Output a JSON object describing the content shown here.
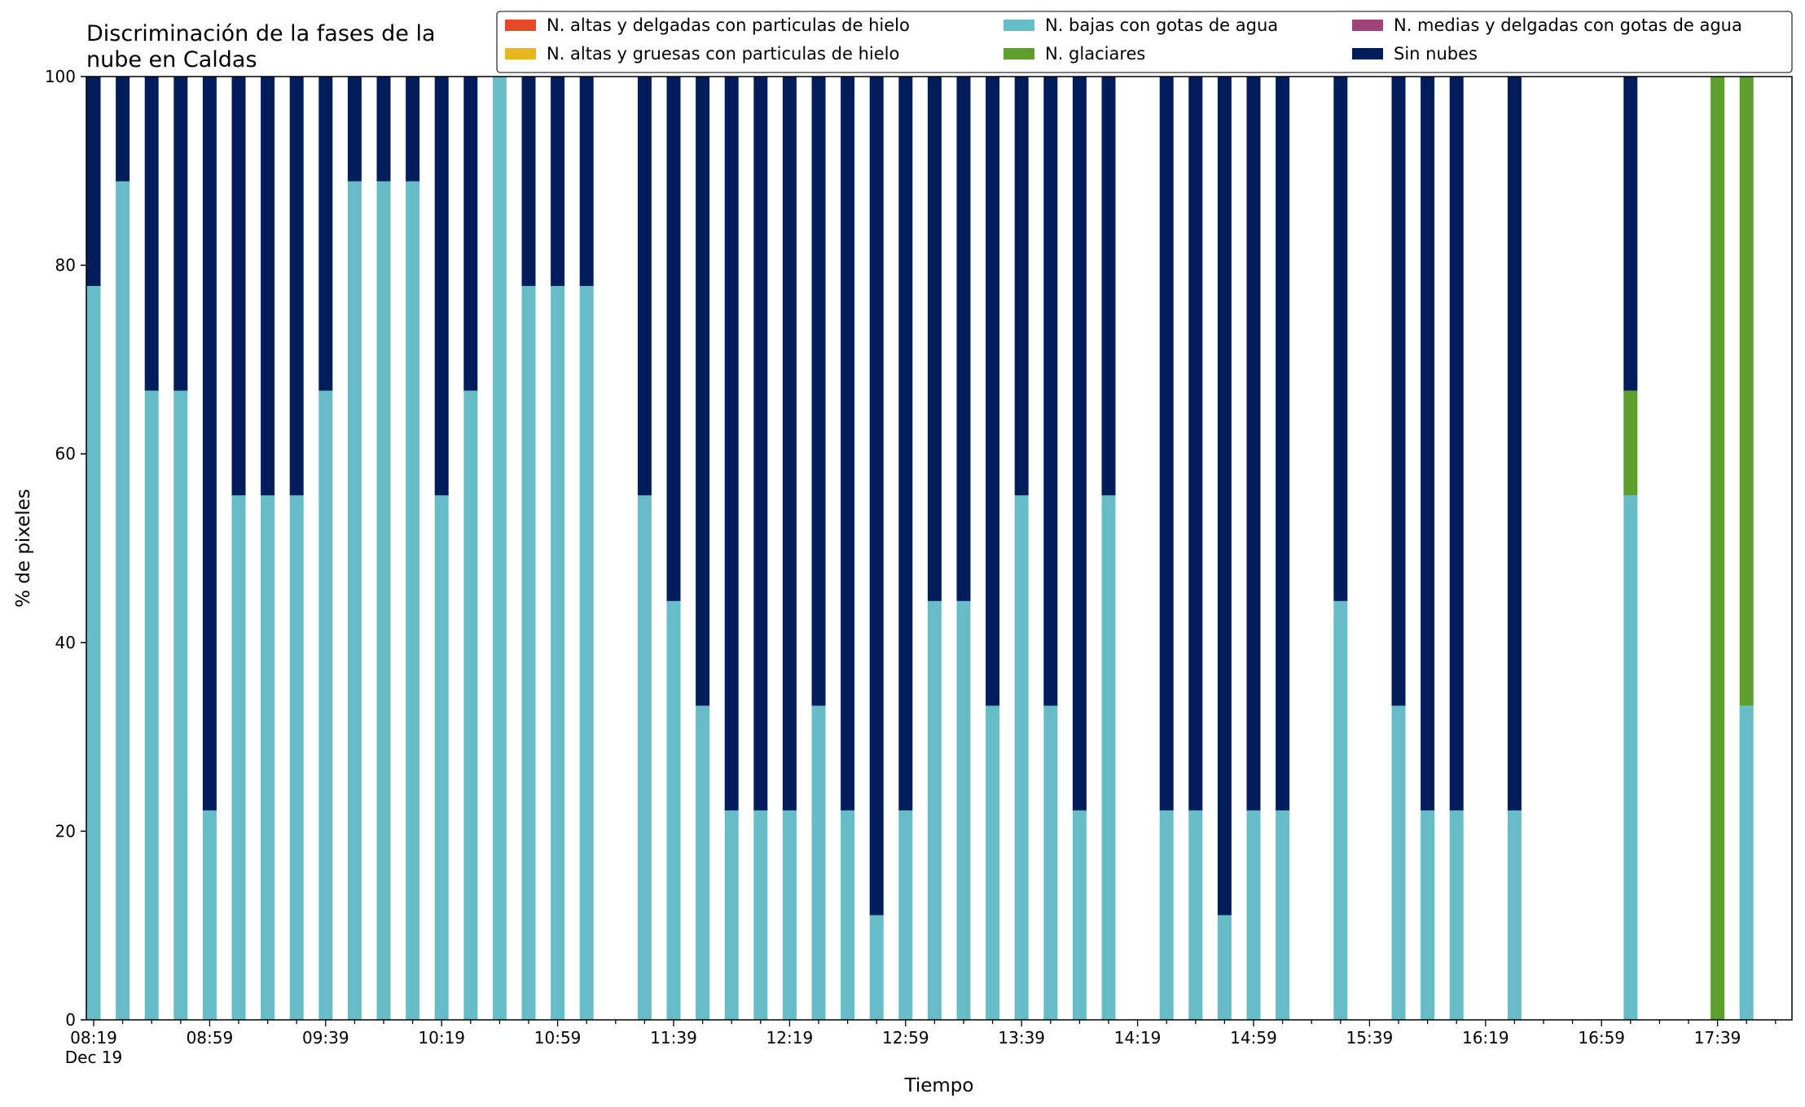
{
  "chart_data": {
    "type": "bar",
    "stacked": true,
    "title": "Discriminación de la fases de la\nnube en Caldas",
    "xlabel": "Tiempo",
    "ylabel": "% de pixeles",
    "ylim": [
      0,
      100
    ],
    "yticks": [
      0,
      20,
      40,
      60,
      80,
      100
    ],
    "grid": false,
    "legend_position": "top-right",
    "x_start": "08:19",
    "x_step_minutes": 10,
    "x_count": 60,
    "x_date_label": "Dec 19",
    "x_tick_labels": [
      "08:19",
      "08:59",
      "09:39",
      "10:19",
      "10:59",
      "11:39",
      "12:19",
      "12:59",
      "13:39",
      "14:19",
      "14:59",
      "15:39",
      "16:19",
      "16:59",
      "17:39"
    ],
    "colors": {
      "n_altas_delgadas_hielo": "#e8472a",
      "n_altas_gruesas_hielo": "#e6b81e",
      "n_bajas_gotas_agua": "#66bdc8",
      "n_glaciares": "#5e9e2c",
      "n_medias_delgadas_agua": "#a04379",
      "sin_nubes": "#031d5c"
    },
    "series": [
      {
        "name": "N. altas y delgadas con particulas de hielo",
        "key": "n_altas_delgadas_hielo",
        "values": [
          null,
          null,
          null,
          null,
          null,
          null,
          null,
          null,
          null,
          null,
          null,
          null,
          null,
          null,
          null,
          null,
          null,
          null,
          null,
          null,
          null,
          null,
          null,
          null,
          null,
          null,
          null,
          null,
          null,
          null,
          null,
          null,
          null,
          null,
          null,
          null,
          null,
          null,
          null,
          null,
          null,
          null,
          null,
          null,
          null,
          null,
          null,
          null,
          null,
          null,
          null,
          null,
          null,
          null,
          null,
          null,
          null,
          null,
          null,
          null
        ]
      },
      {
        "name": "N. altas y gruesas con particulas de hielo",
        "key": "n_altas_gruesas_hielo",
        "values": [
          null,
          null,
          null,
          null,
          null,
          null,
          null,
          null,
          null,
          null,
          null,
          null,
          null,
          null,
          null,
          null,
          null,
          null,
          null,
          null,
          null,
          null,
          null,
          null,
          null,
          null,
          null,
          null,
          null,
          null,
          null,
          null,
          null,
          null,
          null,
          null,
          null,
          null,
          null,
          null,
          null,
          null,
          null,
          null,
          null,
          null,
          null,
          null,
          null,
          null,
          null,
          null,
          null,
          null,
          null,
          null,
          null,
          null,
          null,
          null
        ]
      },
      {
        "name": "N. bajas con gotas de agua",
        "key": "n_bajas_gotas_agua",
        "values": [
          77.8,
          88.9,
          66.7,
          66.7,
          22.2,
          55.6,
          55.6,
          55.6,
          66.7,
          88.9,
          88.9,
          88.9,
          55.6,
          66.7,
          100,
          77.8,
          77.8,
          77.8,
          null,
          55.6,
          44.4,
          33.3,
          22.2,
          22.2,
          22.2,
          33.3,
          22.2,
          11.1,
          22.2,
          44.4,
          44.4,
          33.3,
          55.6,
          33.3,
          22.2,
          55.6,
          null,
          22.2,
          22.2,
          11.1,
          22.2,
          22.2,
          null,
          44.4,
          null,
          33.3,
          22.2,
          22.2,
          null,
          22.2,
          null,
          null,
          null,
          55.6,
          null,
          null,
          0,
          33.3,
          null,
          null
        ]
      },
      {
        "name": "N. glaciares",
        "key": "n_glaciares",
        "values": [
          null,
          null,
          null,
          null,
          null,
          null,
          null,
          null,
          null,
          null,
          null,
          null,
          null,
          null,
          null,
          null,
          null,
          null,
          null,
          null,
          null,
          null,
          null,
          null,
          null,
          null,
          null,
          null,
          null,
          null,
          null,
          null,
          null,
          null,
          null,
          null,
          null,
          null,
          null,
          null,
          null,
          null,
          null,
          null,
          null,
          null,
          null,
          null,
          null,
          null,
          null,
          null,
          null,
          11.1,
          null,
          null,
          100,
          66.7,
          null,
          null
        ]
      },
      {
        "name": "N. medias y delgadas con gotas de agua",
        "key": "n_medias_delgadas_agua",
        "values": [
          null,
          null,
          null,
          null,
          null,
          null,
          null,
          null,
          null,
          null,
          null,
          null,
          null,
          null,
          null,
          null,
          null,
          null,
          null,
          null,
          null,
          null,
          null,
          null,
          null,
          null,
          null,
          null,
          null,
          null,
          null,
          null,
          null,
          null,
          null,
          null,
          null,
          null,
          null,
          null,
          null,
          null,
          null,
          null,
          null,
          null,
          null,
          null,
          null,
          null,
          null,
          null,
          null,
          null,
          null,
          null,
          null,
          null,
          null,
          null
        ]
      },
      {
        "name": "Sin nubes",
        "key": "sin_nubes",
        "values": [
          22.2,
          11.1,
          33.3,
          33.3,
          77.8,
          44.4,
          44.4,
          44.4,
          33.3,
          11.1,
          11.1,
          11.1,
          44.4,
          33.3,
          0,
          22.2,
          22.2,
          22.2,
          null,
          44.4,
          55.6,
          66.7,
          77.8,
          77.8,
          77.8,
          66.7,
          77.8,
          88.9,
          77.8,
          55.6,
          55.6,
          66.7,
          44.4,
          66.7,
          77.8,
          44.4,
          null,
          77.8,
          77.8,
          88.9,
          77.8,
          77.8,
          null,
          55.6,
          null,
          66.7,
          77.8,
          77.8,
          null,
          77.8,
          null,
          null,
          null,
          33.3,
          null,
          null,
          0,
          0,
          null,
          null
        ]
      }
    ]
  }
}
